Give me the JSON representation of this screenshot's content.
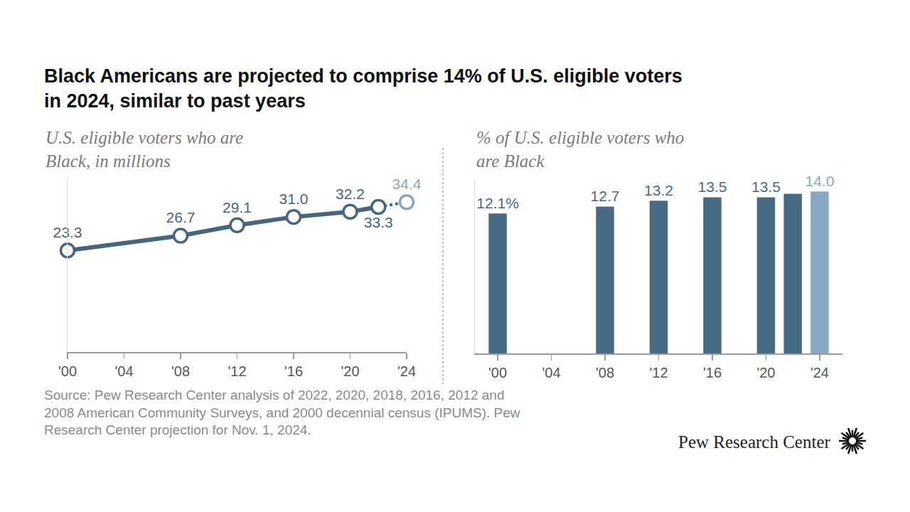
{
  "title": [
    "Black Americans are projected to comprise 14% of U.S. eligible voters",
    "in 2024, similar to past years"
  ],
  "chart_data": [
    {
      "type": "line",
      "title": [
        "U.S. eligible voters who are",
        "Black, in millions"
      ],
      "x": [
        2000,
        2008,
        2012,
        2016,
        2020,
        2022,
        2024
      ],
      "values": [
        23.3,
        26.7,
        29.1,
        31.0,
        32.2,
        33.3,
        34.4
      ],
      "value_labels": [
        "23.3",
        "26.7",
        "29.1",
        "31.0",
        "32.2",
        "33.3",
        "34.4"
      ],
      "colors": [
        "#46667e",
        "#46667e",
        "#46667e",
        "#46667e",
        "#46667e",
        "#46667e",
        "#86a8c2"
      ],
      "marker": "circle",
      "data_labels": true,
      "xlim": [
        2000,
        2024
      ],
      "xticks": [
        {
          "value": 2000,
          "label": "'00"
        },
        {
          "value": 2004,
          "label": "'04"
        },
        {
          "value": 2008,
          "label": "'08"
        },
        {
          "value": 2012,
          "label": "'12"
        },
        {
          "value": 2016,
          "label": "'16"
        },
        {
          "value": 2020,
          "label": "'20"
        },
        {
          "value": 2024,
          "label": "'24"
        }
      ],
      "ylim": [
        0,
        40
      ],
      "yticks": [],
      "tick_labels": "x",
      "grid": false
    },
    {
      "type": "bar",
      "title": [
        "% of U.S. eligible voters who",
        "are Black"
      ],
      "x": [
        2000,
        2008,
        2012,
        2016,
        2020,
        2022,
        2024
      ],
      "values": [
        12.1,
        12.7,
        13.2,
        13.5,
        13.5,
        13.8,
        14.0
      ],
      "value_labels": [
        "12.1%",
        "12.7",
        "13.2",
        "13.5",
        "13.5",
        null,
        "14.0"
      ],
      "colors": [
        "#476a85",
        "#476a85",
        "#476a85",
        "#476a85",
        "#476a85",
        "#476a85",
        "#86a8c2"
      ],
      "data_labels": true,
      "xlim": [
        1998.3,
        2025.7
      ],
      "xticks": [
        {
          "value": 2000,
          "label": "'00"
        },
        {
          "value": 2004,
          "label": "'04"
        },
        {
          "value": 2008,
          "label": "'08"
        },
        {
          "value": 2012,
          "label": "'12"
        },
        {
          "value": 2016,
          "label": "'16"
        },
        {
          "value": 2020,
          "label": "'20"
        },
        {
          "value": 2024,
          "label": "'24"
        }
      ],
      "ylim": [
        0,
        15
      ],
      "yticks": [],
      "tick_labels": "x",
      "grid": false
    }
  ],
  "source": [
    "Source: Pew Research Center analysis of 2022, 2020, 2018, 2016, 2012 and",
    "2008 American Community Surveys, and 2000 decennial census (IPUMS). Pew",
    "Research Center projection for Nov. 1, 2024."
  ],
  "credit": "Pew Research Center"
}
